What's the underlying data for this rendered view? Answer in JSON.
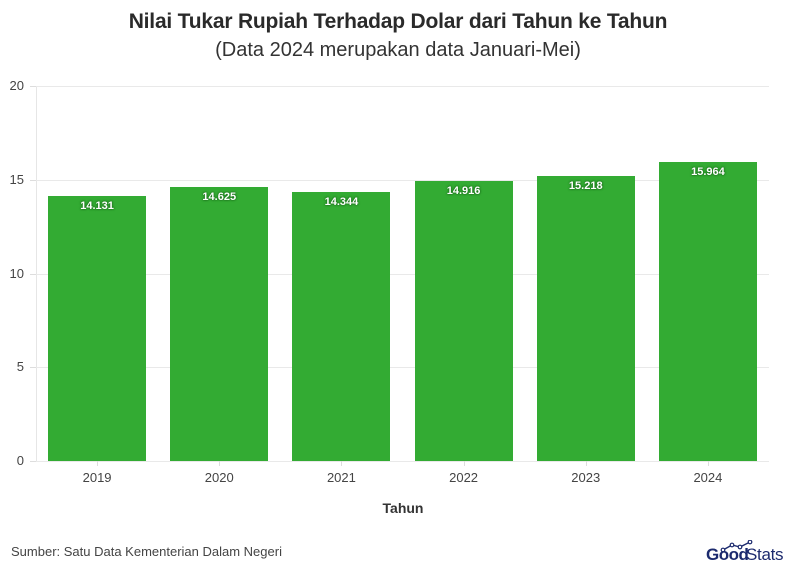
{
  "title": "Nilai Tukar Rupiah Terhadap Dolar dari Tahun ke Tahun",
  "subtitle": "(Data 2024 merupakan data Januari-Mei)",
  "source": "Sumber: Satu Data Kementerian Dalam Negeri",
  "logo": {
    "part1": "Good",
    "part2": "Stats"
  },
  "colors": {
    "bar": "#33ab33",
    "logo": "#1c2a6e"
  },
  "chart_data": {
    "type": "bar",
    "title": "Nilai Tukar Rupiah Terhadap Dolar dari Tahun ke Tahun",
    "subtitle": "(Data 2024 merupakan data Januari-Mei)",
    "xlabel": "Tahun",
    "ylabel": "",
    "categories": [
      "2019",
      "2020",
      "2021",
      "2022",
      "2023",
      "2024"
    ],
    "values": [
      14.131,
      14.625,
      14.344,
      14.916,
      15.218,
      15.964
    ],
    "value_labels": [
      "14.131",
      "14.625",
      "14.344",
      "14.916",
      "15.218",
      "15.964"
    ],
    "ylim": [
      0,
      20
    ],
    "yticks": [
      "0",
      "5",
      "10",
      "15",
      "20"
    ],
    "grid": true,
    "legend": "none"
  }
}
